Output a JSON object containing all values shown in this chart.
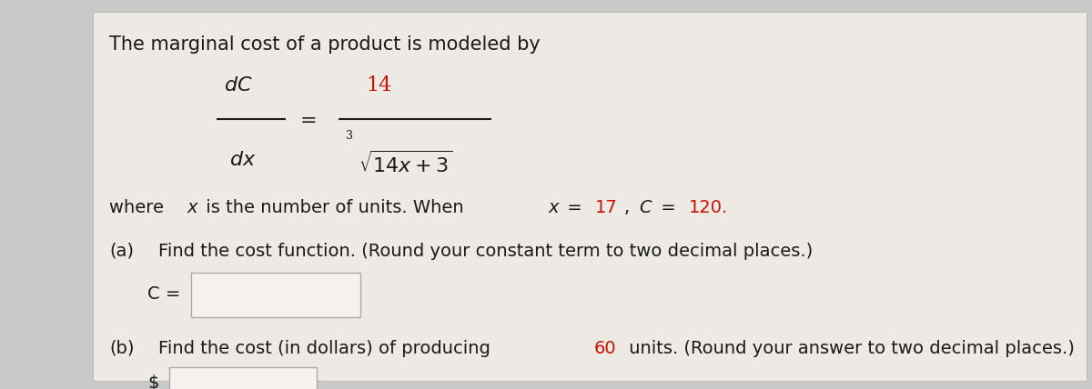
{
  "background_color": "#c8c8c8",
  "panel_color": "#ede9e4",
  "text_color": "#1a1a1a",
  "red_color": "#cc1100",
  "title_text": "The marginal cost of a product is modeled by",
  "part_a_label": "(a)",
  "part_a_text": "Find the cost function. (Round your constant term to two decimal places.)",
  "c_label": "C =",
  "part_b_label": "(b)",
  "part_b_pre": "Find the cost (in dollars) of producing ",
  "part_b_red": "60",
  "part_b_post": " units. (Round your answer to two decimal places.)",
  "dollar_sign": "$",
  "input_box_color": "#f5f2ee",
  "input_box_border": "#aaaaaa",
  "where_pre": "where ",
  "where_x_italic": "x",
  "where_mid": " is the number of units. When ",
  "where_x2": "x",
  "where_eq1": " = ",
  "where_17": "17",
  "where_comma": ", ",
  "where_C": "C",
  "where_eq2": " = ",
  "where_120": "120."
}
